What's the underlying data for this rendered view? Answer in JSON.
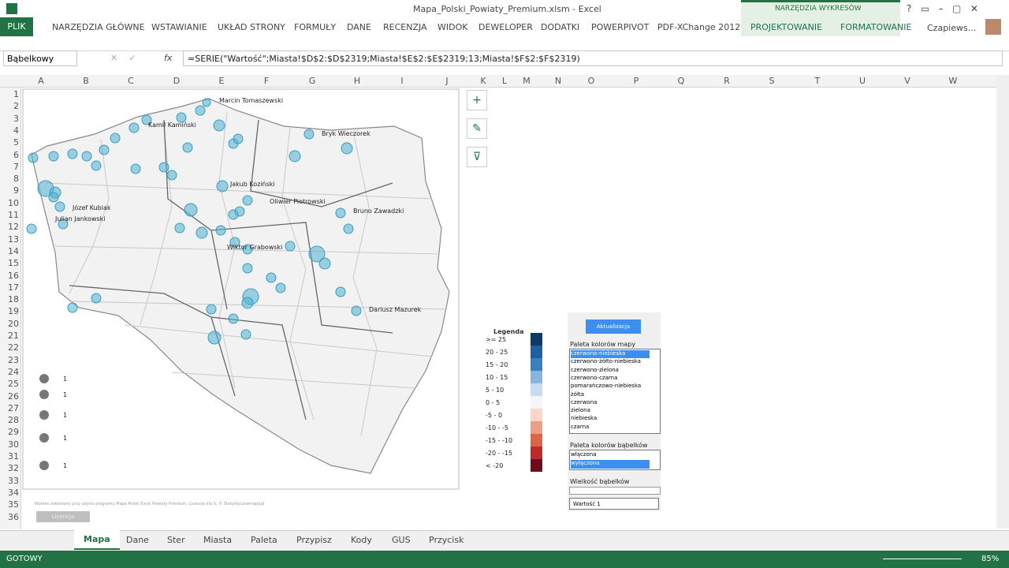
{
  "window": {
    "title": "Mapa_Polski_Powiaty_Premium.xlsm - Excel",
    "context_group": "NARZĘDZIA WYKRESÓW",
    "user": "Czapiews..."
  },
  "ribbon_tabs": [
    "PLIK",
    "NARZĘDZIA GŁÓWNE",
    "WSTAWIANIE",
    "UKŁAD STRONY",
    "FORMUŁY",
    "DANE",
    "RECENZJA",
    "WIDOK",
    "DEWELOPER",
    "DODATKI",
    "POWERPIVOT",
    "PDF-XChange 2012",
    "PROJEKTOWANIE",
    "FORMATOWANIE"
  ],
  "formula_bar": {
    "name_box": "Bąbelkowy",
    "fx": "fx",
    "formula": "=SERIE(\"Wartość\";Miasta!$D$2:$D$2319;Miasta!$E$2:$E$2319;13;Miasta!$F$2:$F$2319)"
  },
  "columns": [
    "A",
    "B",
    "C",
    "D",
    "E",
    "F",
    "G",
    "H",
    "I",
    "J",
    "K",
    "L",
    "M",
    "N",
    "O",
    "P",
    "Q",
    "R",
    "S",
    "T",
    "U",
    "V",
    "W"
  ],
  "rows": [
    1,
    2,
    3,
    4,
    5,
    6,
    7,
    8,
    9,
    10,
    11,
    12,
    13,
    14,
    15,
    16,
    17,
    18,
    19,
    20,
    21,
    22,
    23,
    24,
    25,
    26,
    27,
    28,
    29,
    30,
    31,
    32,
    33,
    34,
    35,
    36
  ],
  "map": {
    "labels": [
      "Marcin Tomaszewski",
      "Kamil Kamiński",
      "Bryk Wieczorek",
      "Józef Kubiak",
      "Julian Jankowski",
      "Bruno Zawadzki",
      "Dariusz Mazurek",
      "Oliwier Piotrowski",
      "Jakub Koziński",
      "Wiktor Grabowski"
    ],
    "size_legend": [
      "1",
      "1",
      "1",
      "1",
      "1"
    ],
    "footer": "Wykres stworzony przy użyciu programu Mapa Polski Excel Powiaty Premium, Licencja dla X, © Statystycznemapy.pl",
    "license_button": "Licencja"
  },
  "legend": {
    "title": "Legenda",
    "items": [
      {
        "label": ">=  25",
        "color": "#0d3a6b"
      },
      {
        "label": "20 - 25",
        "color": "#1f5f9e"
      },
      {
        "label": "15 - 20",
        "color": "#3a7fc0"
      },
      {
        "label": "10 - 15",
        "color": "#86b6de"
      },
      {
        "label": "5 - 10",
        "color": "#c9ddf0"
      },
      {
        "label": "0 - 5",
        "color": "#f6f6f6"
      },
      {
        "label": "-5 - 0",
        "color": "#f9d6c8"
      },
      {
        "label": "-10 - -5",
        "color": "#ec9f84"
      },
      {
        "label": "-15 - -10",
        "color": "#dc6449"
      },
      {
        "label": "-20 - -15",
        "color": "#bd2a2a"
      },
      {
        "label": "<  -20",
        "color": "#700a1c"
      }
    ]
  },
  "panel": {
    "update_button": "Aktualizacja",
    "map_palette_label": "Paleta kolorów mapy",
    "map_palettes": [
      "czerwono-niebieska",
      "czerwono-żółto-niebieska",
      "czerwono-zielona",
      "czerwono-czarna",
      "pomarańczowo-niebieska",
      "żółta",
      "czerwona",
      "zielona",
      "niebieska",
      "czarna"
    ],
    "bubble_palette_label": "Paleta kolorów bąbelków",
    "bubble_palettes": [
      "włączona",
      "wyłączona"
    ],
    "bubble_size_label": "Wielkość bąbelków",
    "bubble_size_value": "Wartość 1"
  },
  "sheet_tabs": [
    "Mapa",
    "Dane",
    "Ster",
    "Miasta",
    "Paleta",
    "Przypisz",
    "Kody",
    "GUS",
    "Przycisk"
  ],
  "status": {
    "ready": "GOTOWY",
    "zoom": "85%"
  }
}
